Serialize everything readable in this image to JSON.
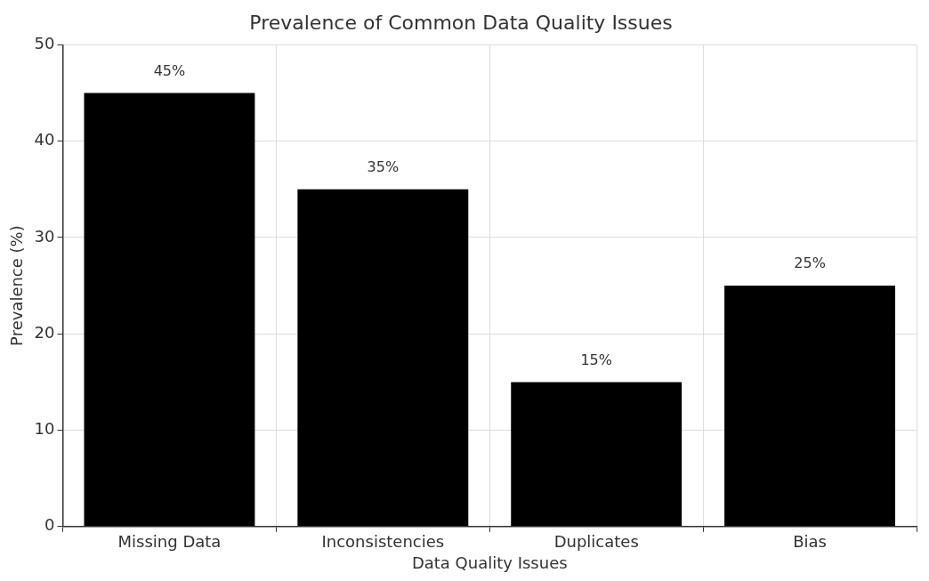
{
  "chart_data": {
    "type": "bar",
    "title": "Prevalence of Common Data Quality Issues",
    "xlabel": "Data Quality Issues",
    "ylabel": "Prevalence (%)",
    "categories": [
      "Missing Data",
      "Inconsistencies",
      "Duplicates",
      "Bias"
    ],
    "values": [
      45,
      35,
      15,
      25
    ],
    "color": "#000000",
    "value_labels": [
      "45%",
      "35%",
      "15%",
      "25%"
    ],
    "ylim": [
      0,
      50
    ],
    "yticks": [
      0,
      10,
      20,
      30,
      40,
      50
    ],
    "grid": true,
    "legend": false
  }
}
